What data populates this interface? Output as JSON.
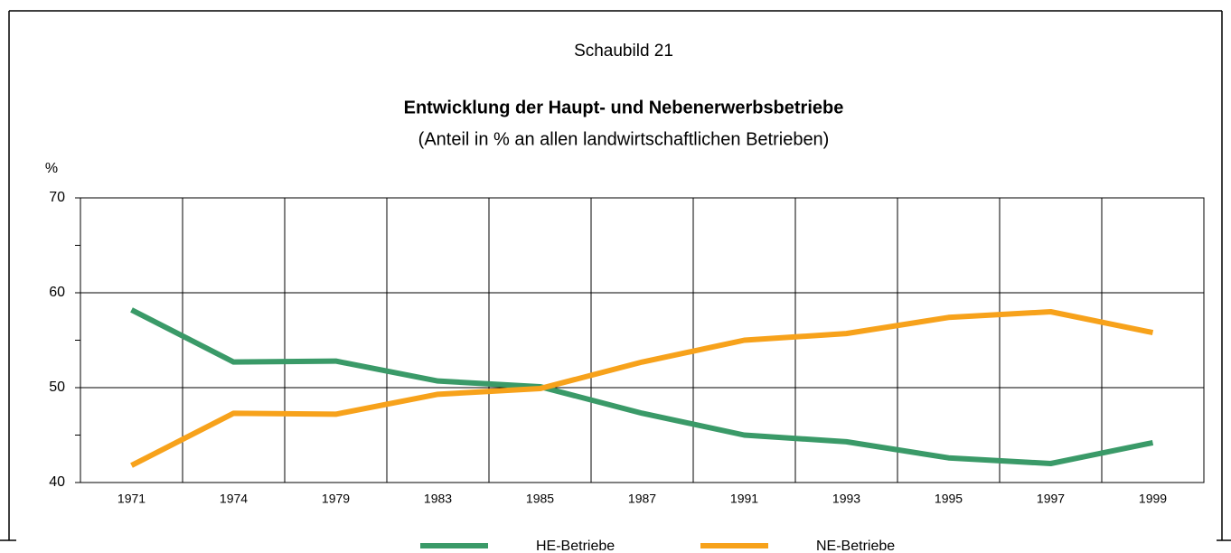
{
  "chart_data": {
    "type": "line",
    "label": "Schaubild 21",
    "title": "Entwicklung der Haupt- und Nebenerwerbsbetriebe",
    "subtitle": "(Anteil in % an allen landwirtschaftlichen Betrieben)",
    "y_label": "%",
    "categories": [
      "1971",
      "1974",
      "1979",
      "1983",
      "1985",
      "1987",
      "1991",
      "1993",
      "1995",
      "1997",
      "1999"
    ],
    "series": [
      {
        "name": "HE-Betriebe",
        "color": "#3a9a68",
        "values": [
          58.2,
          52.7,
          52.8,
          50.7,
          50.1,
          47.3,
          45.0,
          44.3,
          42.6,
          42.0,
          44.2
        ]
      },
      {
        "name": "NE-Betriebe",
        "color": "#f7a21b",
        "values": [
          41.8,
          47.3,
          47.2,
          49.3,
          49.9,
          52.7,
          55.0,
          55.7,
          57.4,
          58.0,
          55.8
        ]
      }
    ],
    "ylim": [
      40,
      70
    ],
    "yticks": [
      40,
      50,
      60,
      70
    ],
    "minor_yticks": [
      45,
      55,
      65
    ],
    "grid": true,
    "legend": "bottom"
  }
}
